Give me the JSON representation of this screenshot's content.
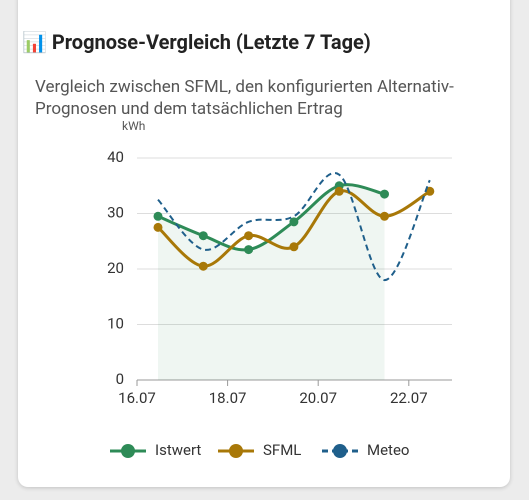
{
  "chart_data": {
    "type": "line",
    "title": "📊 Prognose-Vergleich (Letzte 7 Tage)",
    "subtitle": "Vergleich zwischen SFML, den konfigurierten Alternativ-Prognosen und dem tatsächlichen Ertrag",
    "y_label": "kWh",
    "categories": [
      "16.07",
      null,
      "18.07",
      null,
      "20.07",
      null,
      "22.07"
    ],
    "ylim": [
      0,
      40
    ],
    "yticks": [
      0,
      10,
      20,
      30,
      40
    ],
    "grid": true,
    "series": [
      {
        "name": "Istwert",
        "color": "#2e8b57",
        "values": [
          29.5,
          26,
          23.5,
          28.5,
          35,
          33.5,
          null
        ]
      },
      {
        "name": "SFML",
        "color": "#a87808",
        "values": [
          27.5,
          20.5,
          26,
          24,
          34,
          29.5,
          34
        ]
      },
      {
        "name": "Meteo",
        "color": "#1f5f8b",
        "values": [
          32.5,
          23.5,
          28.5,
          29.5,
          37,
          18,
          36
        ]
      }
    ]
  }
}
